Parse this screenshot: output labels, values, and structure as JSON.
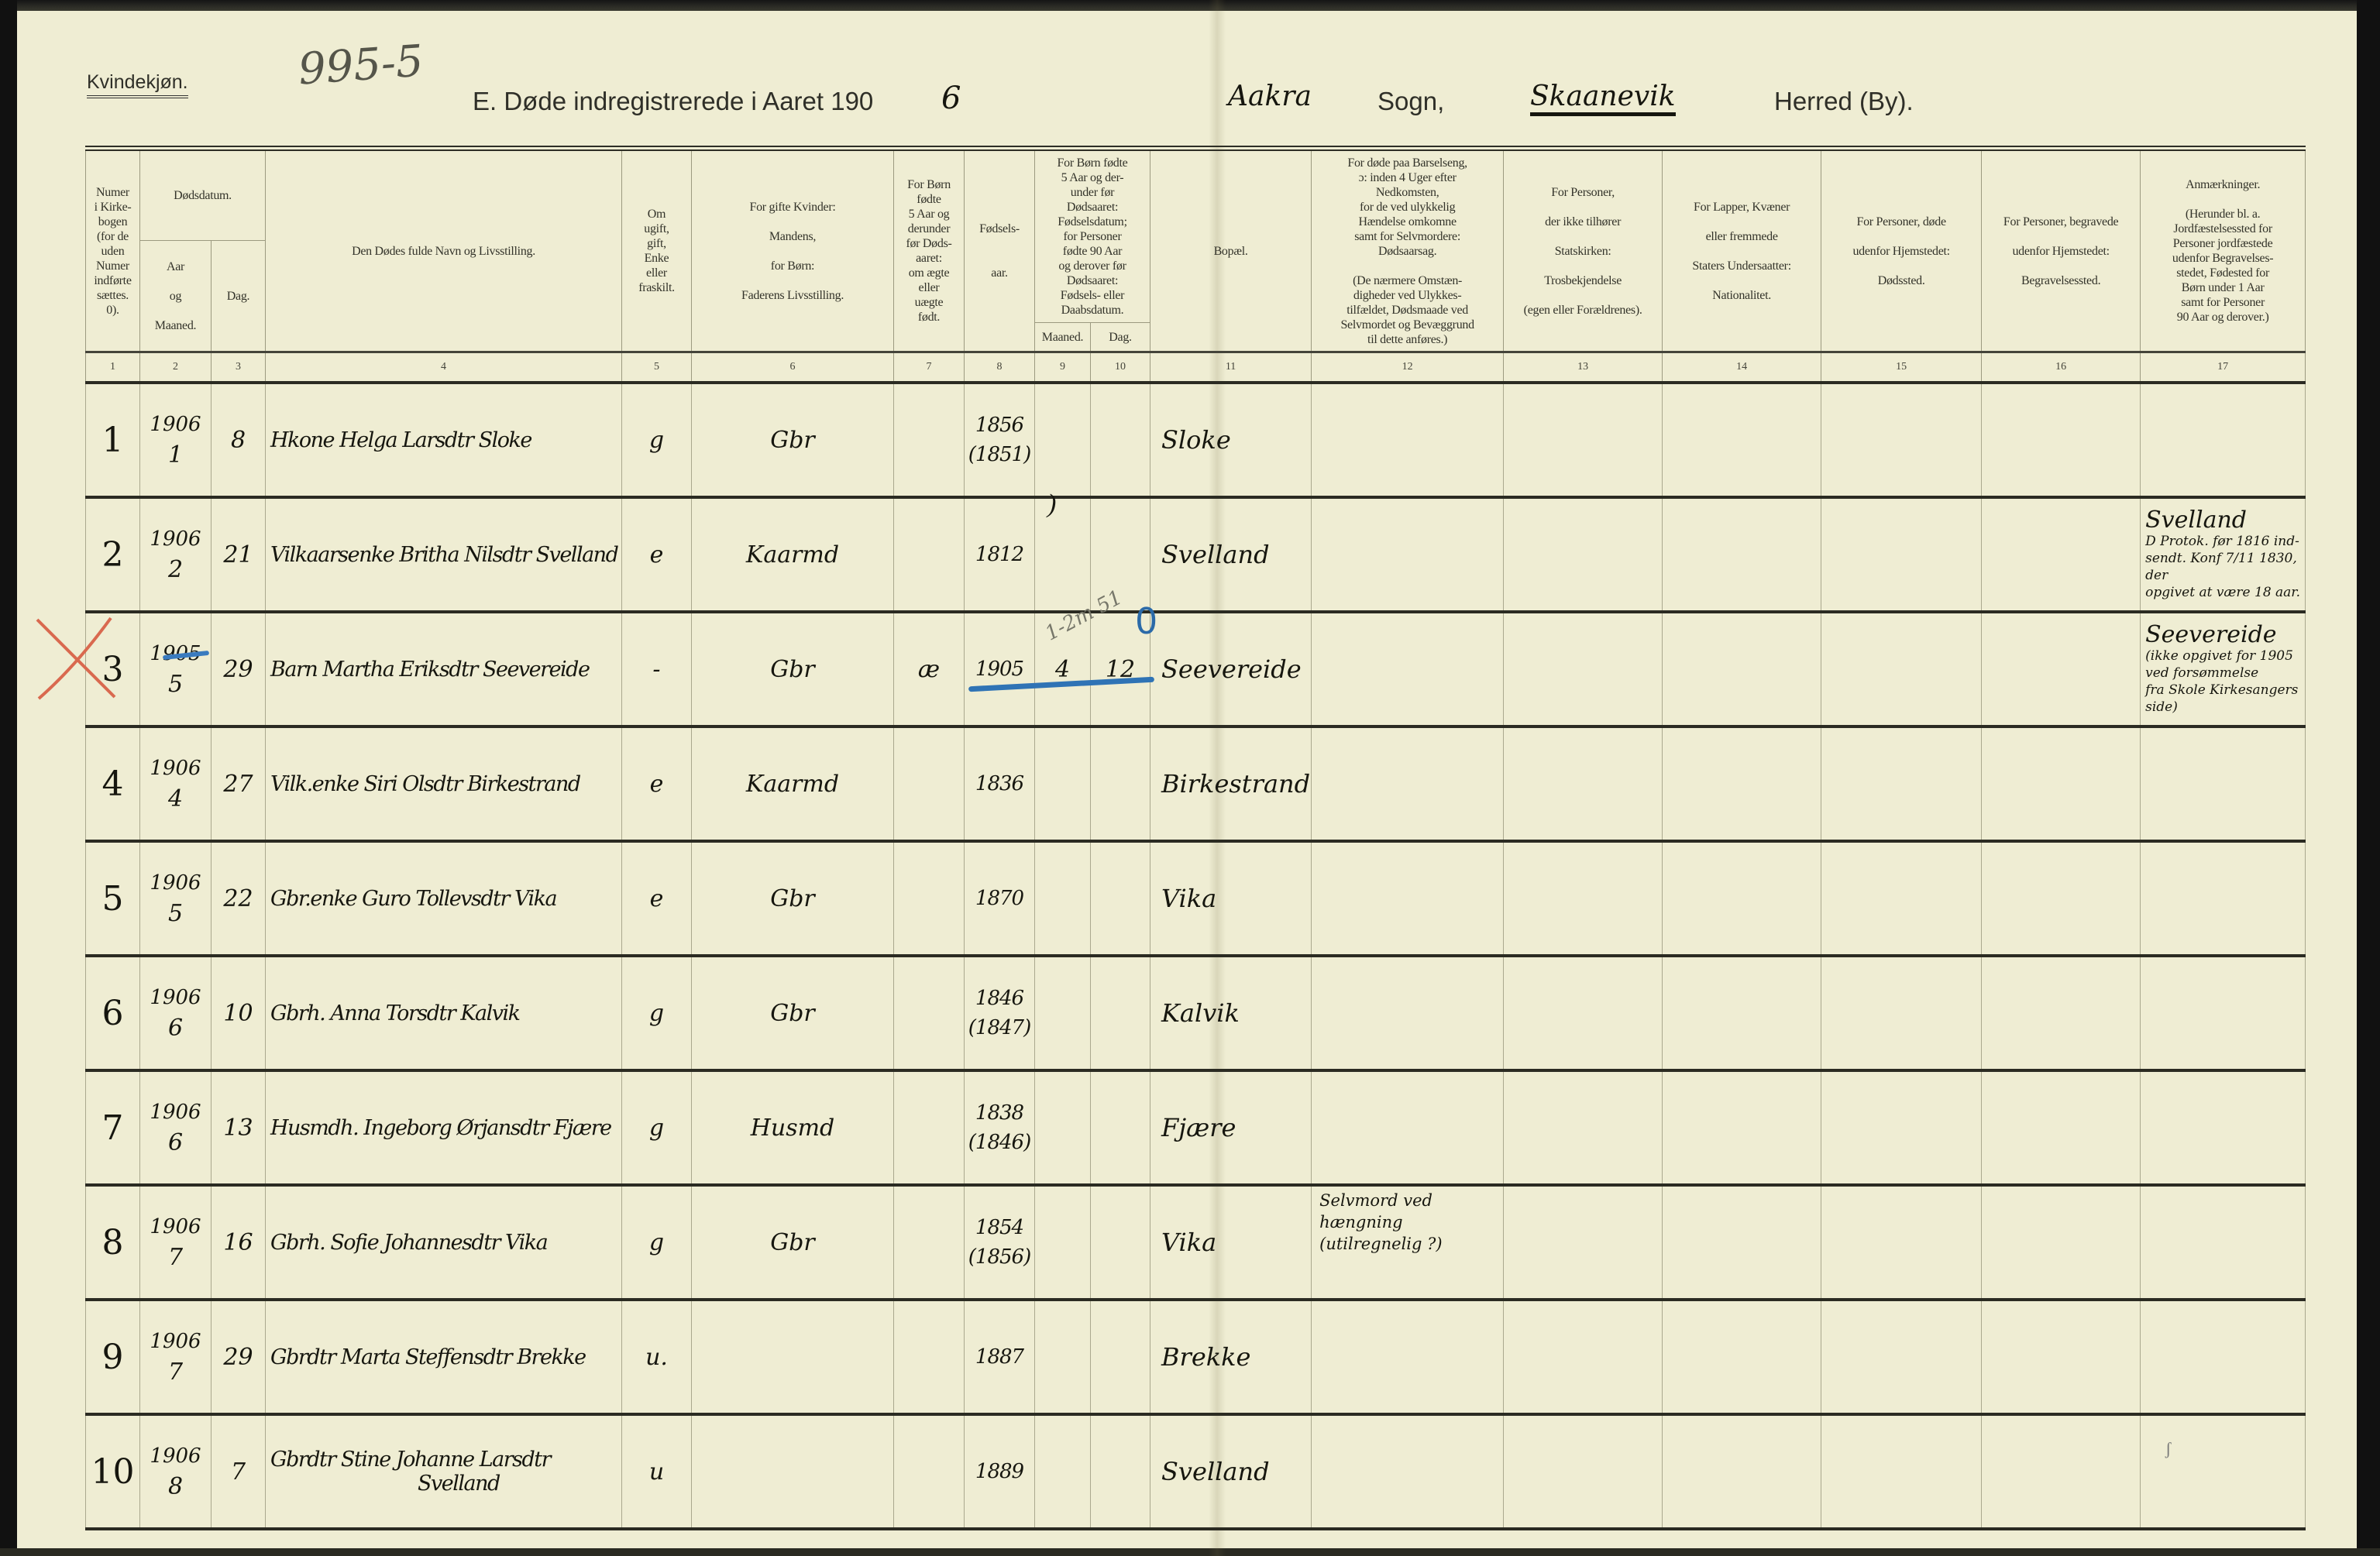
{
  "page": {
    "section_label": "Kvindekjøn.",
    "page_number": "995-5",
    "title": "E.  Døde indregistrerede i Aaret 190",
    "title_year_digit": "6",
    "sogn_value": "Aakra",
    "sogn_label": "Sogn,",
    "herred_value": "Skaanevik",
    "herred_label": "Herred (By)."
  },
  "headers": {
    "c1": "Numer\ni Kirke-\nbogen\n(for de\nuden\nNumer\nindførte\nsættes.\n0).",
    "c2_3_group": "Dødsdatum.",
    "c2": "Aar\n\nog\n\nMaaned.",
    "c3": "Dag.",
    "c4": "Den Dødes fulde Navn og Livsstilling.",
    "c5": "Om\nugift,\ngift,\nEnke\neller\nfraskilt.",
    "c6": "For gifte Kvinder:\n\nMandens,\n\nfor Børn:\n\nFaderens Livsstilling.",
    "c7": "For Børn\nfødte\n5 Aar og\nderunder\nfør Døds-\naaret:\nom ægte\neller\nuægte\nfødt.",
    "c8": "Fødsels-\n\n\naar.",
    "c9_10_group": "For Børn fødte\n5 Aar og der-\nunder før\nDødsaaret:\nFødselsdatum;\nfor Personer\nfødte 90 Aar\nog derover før\nDødsaaret:\nFødsels- eller\nDaabsdatum.",
    "c9": "Maaned.",
    "c10": "Dag.",
    "c11": "Bopæl.",
    "c12": "For døde paa Barselseng,\nɔ: inden 4 Uger efter\nNedkomsten,\nfor de ved ulykkelig\nHændelse omkomne\nsamt for Selvmordere:\nDødsaarsag.\n\n(De nærmere Omstæn-\ndigheder ved Ulykkes-\ntilfældet, Dødsmaade ved\nSelvmordet og Bevæggrund\ntil dette anføres.)",
    "c13": "For Personer,\n\nder ikke tilhører\n\nStatskirken:\n\nTrosbekjendelse\n\n(egen eller Forældrenes).",
    "c14": "For Lapper, Kvæner\n\neller fremmede\n\nStaters Undersaatter:\n\nNationalitet.",
    "c15": "For Personer, døde\n\nudenfor Hjemstedet:\n\nDødssted.",
    "c16": "For Personer, begravede\n\nudenfor Hjemstedet:\n\nBegravelsessted.",
    "c17": "Anmærkninger.\n\n(Herunder bl. a.\nJordfæstelsessted for\nPersoner jordfæstede\nudenfor Begravelses-\nstedet, Fødested for\nBørn under 1 Aar\nsamt for Personer\n90 Aar og derover.)"
  },
  "column_numbers": [
    "1",
    "2",
    "3",
    "4",
    "5",
    "6",
    "7",
    "8",
    "9",
    "10",
    "11",
    "12",
    "13",
    "14",
    "15",
    "16",
    "17"
  ],
  "rows": [
    {
      "num": "1",
      "year": "1906",
      "month": "1",
      "day": "8",
      "name": "Hkone Helga Larsdtr Sloke",
      "name2": "",
      "status": "g",
      "father": "Gbr",
      "legit": "",
      "birth": "1856",
      "birth_alt": "(1851)",
      "c_month": "",
      "c_day": "",
      "residence": "Sloke",
      "cause": "",
      "remark_title": "",
      "remark": ""
    },
    {
      "num": "2",
      "year": "1906",
      "month": "2",
      "day": "21",
      "name": "Vilkaarsenke Britha Nilsdtr Svelland",
      "name2": "",
      "status": "e",
      "father": "Kaarmd",
      "legit": "",
      "birth": "1812",
      "birth_alt": "",
      "c_month": "",
      "c_day": "",
      "residence": "Svelland",
      "cause": "",
      "remark_title": "Svelland",
      "remark": "D Protok. før 1816 ind-\nsendt. Konf 7/11 1830, der\nopgivet at være 18 aar."
    },
    {
      "num": "3",
      "year": "1905",
      "month": "5",
      "day": "29",
      "name": "Barn Martha Eriksdtr Seevereide",
      "name2": "",
      "status": "-",
      "father": "Gbr",
      "legit": "æ",
      "birth": "1905",
      "birth_alt": "",
      "c_month": "4",
      "c_day": "12",
      "residence": "Seevereide",
      "cause": "",
      "remark_title": "Seevereide",
      "remark": "(ikke opgivet for 1905 ved forsømmelse\nfra Skole Kirkesangers side)"
    },
    {
      "num": "4",
      "year": "1906",
      "month": "4",
      "day": "27",
      "name": "Vilk.enke Siri Olsdtr Birkestrand",
      "name2": "",
      "status": "e",
      "father": "Kaarmd",
      "legit": "",
      "birth": "1836",
      "birth_alt": "",
      "c_month": "",
      "c_day": "",
      "residence": "Birkestrand",
      "cause": "",
      "remark_title": "",
      "remark": ""
    },
    {
      "num": "5",
      "year": "1906",
      "month": "5",
      "day": "22",
      "name": "Gbr.enke Guro Tollevsdtr Vika",
      "name2": "",
      "status": "e",
      "father": "Gbr",
      "legit": "",
      "birth": "1870",
      "birth_alt": "",
      "c_month": "",
      "c_day": "",
      "residence": "Vika",
      "cause": "",
      "remark_title": "",
      "remark": ""
    },
    {
      "num": "6",
      "year": "1906",
      "month": "6",
      "day": "10",
      "name": "Gbrh. Anna Torsdtr Kalvik",
      "name2": "",
      "status": "g",
      "father": "Gbr",
      "legit": "",
      "birth": "1846",
      "birth_alt": "(1847)",
      "c_month": "",
      "c_day": "",
      "residence": "Kalvik",
      "cause": "",
      "remark_title": "",
      "remark": ""
    },
    {
      "num": "7",
      "year": "1906",
      "month": "6",
      "day": "13",
      "name": "Husmdh. Ingeborg Ørjansdtr Fjære",
      "name2": "",
      "status": "g",
      "father": "Husmd",
      "legit": "",
      "birth": "1838",
      "birth_alt": "(1846)",
      "c_month": "",
      "c_day": "",
      "residence": "Fjære",
      "cause": "",
      "remark_title": "",
      "remark": ""
    },
    {
      "num": "8",
      "year": "1906",
      "month": "7",
      "day": "16",
      "name": "Gbrh. Sofie Johannesdtr Vika",
      "name2": "",
      "status": "g",
      "father": "Gbr",
      "legit": "",
      "birth": "1854",
      "birth_alt": "(1856)",
      "c_month": "",
      "c_day": "",
      "residence": "Vika",
      "cause": "Selvmord ved\nhængning\n(utilregnelig ?)",
      "remark_title": "",
      "remark": ""
    },
    {
      "num": "9",
      "year": "1906",
      "month": "7",
      "day": "29",
      "name": "Gbrdtr Marta Steffensdtr Brekke",
      "name2": "",
      "status": "u.",
      "father": "",
      "legit": "",
      "birth": "1887",
      "birth_alt": "",
      "c_month": "",
      "c_day": "",
      "residence": "Brekke",
      "cause": "",
      "remark_title": "",
      "remark": ""
    },
    {
      "num": "10",
      "year": "1906",
      "month": "8",
      "day": "7",
      "name": "Gbrdtr Stine Johanne Larsdtr",
      "name2": "Svelland",
      "status": "u",
      "father": "",
      "legit": "",
      "birth": "1889",
      "birth_alt": "",
      "c_month": "",
      "c_day": "",
      "residence": "Svelland",
      "cause": "",
      "remark_title": "",
      "remark": ""
    }
  ],
  "annotations": {
    "pencil_note": "1-2m 51",
    "blue_mark": "0",
    "paren_mark": ")",
    "small_mark": "ʃ"
  },
  "colors": {
    "paper": "#efedd3",
    "ink": "#16160f",
    "blue_pencil": "#2f73b5",
    "red_pencil": "#d9694f"
  }
}
